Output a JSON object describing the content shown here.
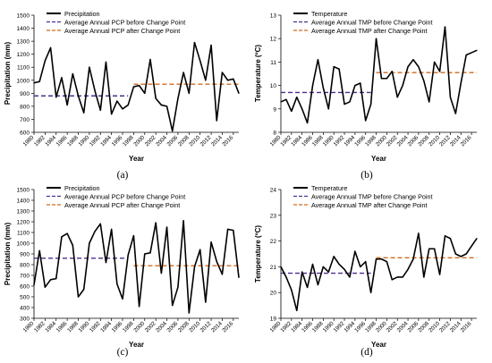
{
  "colors": {
    "main": "#000000",
    "before": "#4b2f8f",
    "after": "#d2691e"
  },
  "chart_data": [
    {
      "id": "a",
      "type": "line",
      "panel_label": "(a)",
      "xlabel": "Year",
      "ylabel": "Precipitation (mm)",
      "ylim": [
        600,
        1500
      ],
      "yticks": [
        600,
        700,
        800,
        900,
        1000,
        1100,
        1200,
        1300,
        1400,
        1500
      ],
      "xlim": [
        1980,
        2017
      ],
      "xticks": [
        1980,
        1982,
        1984,
        1986,
        1988,
        1990,
        1992,
        1994,
        1996,
        1998,
        2000,
        2002,
        2004,
        2006,
        2008,
        2010,
        2012,
        2014,
        2016
      ],
      "series": [
        {
          "name": "Precipitation",
          "x": [
            1980,
            1981,
            1982,
            1983,
            1984,
            1985,
            1986,
            1987,
            1988,
            1989,
            1990,
            1991,
            1992,
            1993,
            1994,
            1995,
            1996,
            1997,
            1998,
            1999,
            2000,
            2001,
            2002,
            2003,
            2004,
            2005,
            2006,
            2007,
            2008,
            2009,
            2010,
            2011,
            2012,
            2013,
            2014,
            2015,
            2016,
            2017
          ],
          "values": [
            980,
            990,
            1150,
            1250,
            870,
            1020,
            810,
            1050,
            880,
            750,
            1100,
            920,
            770,
            1140,
            740,
            840,
            780,
            810,
            950,
            960,
            900,
            1160,
            860,
            810,
            800,
            610,
            860,
            1060,
            900,
            1290,
            1150,
            1000,
            1270,
            690,
            1060,
            1000,
            1010,
            900
          ]
        }
      ],
      "lines": [
        {
          "name": "Average Annual PCP before Change Point",
          "x": [
            1980,
            1997
          ],
          "y": 880
        },
        {
          "name": "Average Annual PCP after Change Point",
          "x": [
            1998,
            2017
          ],
          "y": 970
        }
      ]
    },
    {
      "id": "b",
      "type": "line",
      "panel_label": "(b)",
      "xlabel": "Year",
      "ylabel": "Temperature (ºC)",
      "ylim": [
        8,
        13
      ],
      "yticks": [
        8,
        9,
        10,
        11,
        12,
        13
      ],
      "xlim": [
        1980,
        2017
      ],
      "xticks": [
        1980,
        1982,
        1984,
        1986,
        1988,
        1990,
        1992,
        1994,
        1996,
        1998,
        2000,
        2002,
        2004,
        2006,
        2008,
        2010,
        2012,
        2014,
        2016
      ],
      "series": [
        {
          "name": "Temperature",
          "x": [
            1980,
            1981,
            1982,
            1983,
            1984,
            1985,
            1986,
            1987,
            1988,
            1989,
            1990,
            1991,
            1992,
            1993,
            1994,
            1995,
            1996,
            1997,
            1998,
            1999,
            2000,
            2001,
            2002,
            2003,
            2004,
            2005,
            2006,
            2007,
            2008,
            2009,
            2010,
            2011,
            2012,
            2013,
            2014,
            2015,
            2016,
            2017
          ],
          "values": [
            9.3,
            9.4,
            8.9,
            9.5,
            9.0,
            8.4,
            10.0,
            11.1,
            9.9,
            9.0,
            10.8,
            10.7,
            9.2,
            9.3,
            10.0,
            10.1,
            8.5,
            9.2,
            12.0,
            10.3,
            10.3,
            10.6,
            9.5,
            10.0,
            10.8,
            11.1,
            10.8,
            10.2,
            9.3,
            11.0,
            10.6,
            12.5,
            9.5,
            8.8,
            10.1,
            11.3,
            11.4,
            11.5
          ]
        }
      ],
      "lines": [
        {
          "name": "Average Annual TMP before Change Point",
          "x": [
            1980,
            1997
          ],
          "y": 9.7
        },
        {
          "name": "Average Annual TMP after Change Point",
          "x": [
            1998,
            2017
          ],
          "y": 10.55
        }
      ]
    },
    {
      "id": "c",
      "type": "line",
      "panel_label": "(c)",
      "xlabel": "Year",
      "ylabel": "Precipitation (mm)",
      "ylim": [
        300,
        1500
      ],
      "yticks": [
        300,
        400,
        500,
        600,
        700,
        800,
        900,
        1000,
        1100,
        1200,
        1300,
        1400,
        1500
      ],
      "xlim": [
        1980,
        2017
      ],
      "xticks": [
        1980,
        1982,
        1984,
        1986,
        1988,
        1990,
        1992,
        1994,
        1996,
        1998,
        2000,
        2002,
        2004,
        2006,
        2008,
        2010,
        2012,
        2014,
        2016
      ],
      "series": [
        {
          "name": "Precipitation",
          "x": [
            1980,
            1981,
            1982,
            1983,
            1984,
            1985,
            1986,
            1987,
            1988,
            1989,
            1990,
            1991,
            1992,
            1993,
            1994,
            1995,
            1996,
            1997,
            1998,
            1999,
            2000,
            2001,
            2002,
            2003,
            2004,
            2005,
            2006,
            2007,
            2008,
            2009,
            2010,
            2011,
            2012,
            2013,
            2014,
            2015,
            2016,
            2017
          ],
          "values": [
            610,
            930,
            590,
            660,
            670,
            1060,
            1090,
            980,
            500,
            570,
            1000,
            1110,
            1180,
            820,
            1130,
            620,
            480,
            890,
            1070,
            410,
            900,
            910,
            1190,
            720,
            1150,
            420,
            590,
            1210,
            350,
            780,
            940,
            450,
            1010,
            830,
            710,
            1130,
            1120,
            680
          ]
        }
      ],
      "lines": [
        {
          "name": "Average Annual PCP before Change Point",
          "x": [
            1980,
            1997
          ],
          "y": 860
        },
        {
          "name": "Average Annual PCP after Change Point",
          "x": [
            1998,
            2017
          ],
          "y": 790
        }
      ]
    },
    {
      "id": "d",
      "type": "line",
      "panel_label": "(d)",
      "xlabel": "Year",
      "ylabel": "Temperature (ºC)",
      "ylim": [
        19,
        24
      ],
      "yticks": [
        19,
        20,
        21,
        22,
        23,
        24
      ],
      "xlim": [
        1980,
        2017
      ],
      "xticks": [
        1980,
        1982,
        1984,
        1986,
        1988,
        1990,
        1992,
        1994,
        1996,
        1998,
        2000,
        2002,
        2004,
        2006,
        2008,
        2010,
        2012,
        2014,
        2016
      ],
      "series": [
        {
          "name": "Temperature",
          "x": [
            1980,
            1981,
            1982,
            1983,
            1984,
            1985,
            1986,
            1987,
            1988,
            1989,
            1990,
            1991,
            1992,
            1993,
            1994,
            1995,
            1996,
            1997,
            1998,
            1999,
            2000,
            2001,
            2002,
            2003,
            2004,
            2005,
            2006,
            2007,
            2008,
            2009,
            2010,
            2011,
            2012,
            2013,
            2014,
            2015,
            2016,
            2017
          ],
          "values": [
            21.0,
            20.6,
            20.1,
            19.3,
            20.8,
            20.2,
            21.1,
            20.3,
            21.0,
            20.8,
            21.4,
            21.1,
            20.9,
            20.6,
            21.6,
            21.0,
            21.2,
            20.0,
            21.3,
            21.3,
            21.2,
            20.5,
            20.6,
            20.6,
            20.9,
            21.3,
            22.3,
            20.6,
            21.7,
            21.7,
            20.7,
            22.2,
            22.1,
            21.5,
            21.4,
            21.5,
            21.8,
            22.1
          ]
        }
      ],
      "lines": [
        {
          "name": "Average Annual TMP before Change Point",
          "x": [
            1980,
            1997
          ],
          "y": 20.75
        },
        {
          "name": "Average Annual TMP after Change Point",
          "x": [
            1998,
            2017
          ],
          "y": 21.35
        }
      ]
    }
  ]
}
